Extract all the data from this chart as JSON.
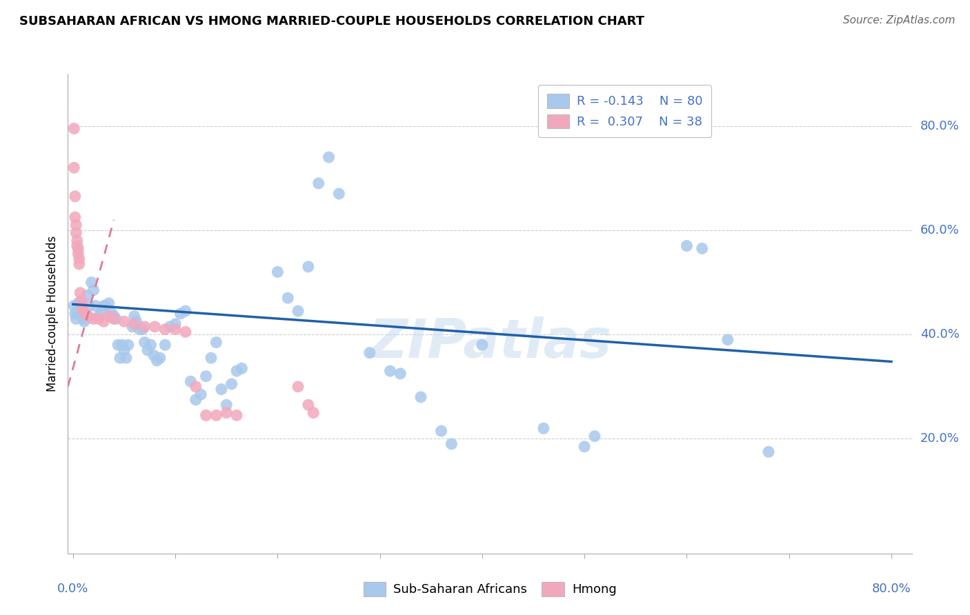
{
  "title": "SUBSAHARAN AFRICAN VS HMONG MARRIED-COUPLE HOUSEHOLDS CORRELATION CHART",
  "source": "Source: ZipAtlas.com",
  "ylabel": "Married-couple Households",
  "watermark": "ZIPatlas",
  "blue_color": "#A8C8EC",
  "pink_color": "#F2A8BC",
  "trend_blue_color": "#2060A8",
  "trend_pink_color": "#E07898",
  "blue_scatter": [
    [
      0.001,
      0.455
    ],
    [
      0.002,
      0.44
    ],
    [
      0.003,
      0.43
    ],
    [
      0.004,
      0.445
    ],
    [
      0.005,
      0.46
    ],
    [
      0.006,
      0.455
    ],
    [
      0.007,
      0.44
    ],
    [
      0.008,
      0.445
    ],
    [
      0.009,
      0.435
    ],
    [
      0.01,
      0.43
    ],
    [
      0.011,
      0.425
    ],
    [
      0.012,
      0.44
    ],
    [
      0.014,
      0.475
    ],
    [
      0.016,
      0.455
    ],
    [
      0.018,
      0.5
    ],
    [
      0.02,
      0.485
    ],
    [
      0.022,
      0.455
    ],
    [
      0.025,
      0.435
    ],
    [
      0.028,
      0.445
    ],
    [
      0.03,
      0.455
    ],
    [
      0.032,
      0.455
    ],
    [
      0.035,
      0.46
    ],
    [
      0.038,
      0.44
    ],
    [
      0.04,
      0.435
    ],
    [
      0.042,
      0.43
    ],
    [
      0.044,
      0.38
    ],
    [
      0.046,
      0.355
    ],
    [
      0.048,
      0.38
    ],
    [
      0.05,
      0.37
    ],
    [
      0.052,
      0.355
    ],
    [
      0.054,
      0.38
    ],
    [
      0.058,
      0.415
    ],
    [
      0.06,
      0.435
    ],
    [
      0.062,
      0.425
    ],
    [
      0.065,
      0.41
    ],
    [
      0.068,
      0.41
    ],
    [
      0.07,
      0.385
    ],
    [
      0.073,
      0.37
    ],
    [
      0.076,
      0.38
    ],
    [
      0.079,
      0.36
    ],
    [
      0.082,
      0.35
    ],
    [
      0.085,
      0.355
    ],
    [
      0.09,
      0.38
    ],
    [
      0.095,
      0.415
    ],
    [
      0.1,
      0.42
    ],
    [
      0.105,
      0.44
    ],
    [
      0.11,
      0.445
    ],
    [
      0.115,
      0.31
    ],
    [
      0.12,
      0.275
    ],
    [
      0.125,
      0.285
    ],
    [
      0.13,
      0.32
    ],
    [
      0.135,
      0.355
    ],
    [
      0.14,
      0.385
    ],
    [
      0.145,
      0.295
    ],
    [
      0.15,
      0.265
    ],
    [
      0.155,
      0.305
    ],
    [
      0.16,
      0.33
    ],
    [
      0.165,
      0.335
    ],
    [
      0.2,
      0.52
    ],
    [
      0.21,
      0.47
    ],
    [
      0.22,
      0.445
    ],
    [
      0.23,
      0.53
    ],
    [
      0.24,
      0.69
    ],
    [
      0.25,
      0.74
    ],
    [
      0.26,
      0.67
    ],
    [
      0.29,
      0.365
    ],
    [
      0.31,
      0.33
    ],
    [
      0.32,
      0.325
    ],
    [
      0.34,
      0.28
    ],
    [
      0.36,
      0.215
    ],
    [
      0.37,
      0.19
    ],
    [
      0.4,
      0.38
    ],
    [
      0.46,
      0.22
    ],
    [
      0.5,
      0.185
    ],
    [
      0.51,
      0.205
    ],
    [
      0.6,
      0.57
    ],
    [
      0.615,
      0.565
    ],
    [
      0.64,
      0.39
    ],
    [
      0.68,
      0.175
    ]
  ],
  "pink_scatter": [
    [
      0.001,
      0.795
    ],
    [
      0.001,
      0.72
    ],
    [
      0.002,
      0.665
    ],
    [
      0.002,
      0.625
    ],
    [
      0.003,
      0.61
    ],
    [
      0.003,
      0.595
    ],
    [
      0.004,
      0.58
    ],
    [
      0.004,
      0.57
    ],
    [
      0.005,
      0.565
    ],
    [
      0.005,
      0.555
    ],
    [
      0.006,
      0.545
    ],
    [
      0.006,
      0.535
    ],
    [
      0.007,
      0.48
    ],
    [
      0.008,
      0.465
    ],
    [
      0.009,
      0.455
    ],
    [
      0.01,
      0.445
    ],
    [
      0.012,
      0.44
    ],
    [
      0.015,
      0.435
    ],
    [
      0.02,
      0.43
    ],
    [
      0.025,
      0.43
    ],
    [
      0.03,
      0.425
    ],
    [
      0.035,
      0.435
    ],
    [
      0.04,
      0.43
    ],
    [
      0.05,
      0.425
    ],
    [
      0.06,
      0.42
    ],
    [
      0.07,
      0.415
    ],
    [
      0.08,
      0.415
    ],
    [
      0.09,
      0.41
    ],
    [
      0.1,
      0.41
    ],
    [
      0.11,
      0.405
    ],
    [
      0.12,
      0.3
    ],
    [
      0.13,
      0.245
    ],
    [
      0.14,
      0.245
    ],
    [
      0.15,
      0.25
    ],
    [
      0.16,
      0.245
    ],
    [
      0.22,
      0.3
    ],
    [
      0.23,
      0.265
    ],
    [
      0.235,
      0.25
    ]
  ],
  "blue_trend_x": [
    0.0,
    0.8
  ],
  "blue_trend_y": [
    0.458,
    0.348
  ],
  "pink_trend_x": [
    -0.005,
    0.04
  ],
  "pink_trend_y": [
    0.3,
    0.62
  ],
  "xlim": [
    -0.005,
    0.82
  ],
  "ylim": [
    -0.02,
    0.9
  ],
  "ytick_values": [
    0.2,
    0.4,
    0.6,
    0.8
  ],
  "ytick_labels": [
    "20.0%",
    "40.0%",
    "60.0%",
    "80.0%"
  ],
  "xtick_values": [
    0.0,
    0.1,
    0.2,
    0.3,
    0.4,
    0.5,
    0.6,
    0.7,
    0.8
  ],
  "tick_color": "#4472C4",
  "title_fontsize": 13,
  "axis_label_fontsize": 12,
  "legend_fontsize": 13
}
